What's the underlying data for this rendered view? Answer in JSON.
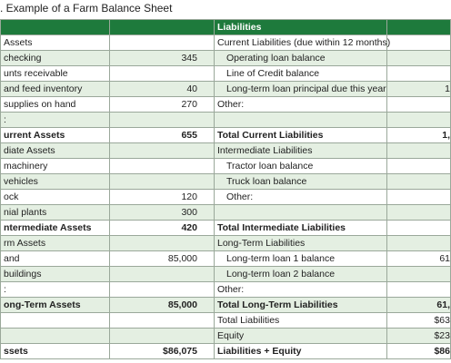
{
  "title": ". Example of a Farm Balance Sheet",
  "table": {
    "header": [
      null,
      null,
      "Liabilities",
      null
    ],
    "rows": [
      [
        "Assets",
        null,
        "Current Liabilities (due within 12 months)",
        null
      ],
      [
        "checking",
        "345",
        "Operating loan balance",
        null
      ],
      [
        "unts receivable",
        null,
        "Line of Credit balance",
        null
      ],
      [
        "and feed inventory",
        "40",
        "Long-term loan principal due this year",
        "1"
      ],
      [
        "supplies on hand",
        "270",
        "Other:",
        null
      ],
      [
        ":",
        null,
        null,
        null
      ],
      [
        "urrent Assets",
        "655",
        "Total Current Liabilities",
        "1,"
      ],
      [
        "diate Assets",
        null,
        "Intermediate Liabilities",
        null
      ],
      [
        "machinery",
        null,
        "Tractor loan balance",
        null
      ],
      [
        "vehicles",
        null,
        "Truck loan balance",
        null
      ],
      [
        "ock",
        "120",
        "Other:",
        null
      ],
      [
        "nial plants",
        "300",
        null,
        null
      ],
      [
        "ntermediate Assets",
        "420",
        "Total Intermediate Liabilities",
        null
      ],
      [
        "rm Assets",
        null,
        "Long-Term Liabilities",
        null
      ],
      [
        "and",
        "85,000",
        "Long-term loan 1 balance",
        "61"
      ],
      [
        "buildings",
        null,
        "Long-term loan 2 balance",
        null
      ],
      [
        ":",
        null,
        "Other:",
        null
      ],
      [
        "ong-Term Assets",
        "85,000",
        "Total Long-Term Liabilities",
        "61,"
      ],
      [
        null,
        null,
        "Total Liabilities",
        "$63"
      ],
      [
        null,
        null,
        "Equity",
        "$23"
      ],
      [
        "ssets",
        "$86,075",
        "Liabilities + Equity",
        "$86"
      ]
    ]
  }
}
